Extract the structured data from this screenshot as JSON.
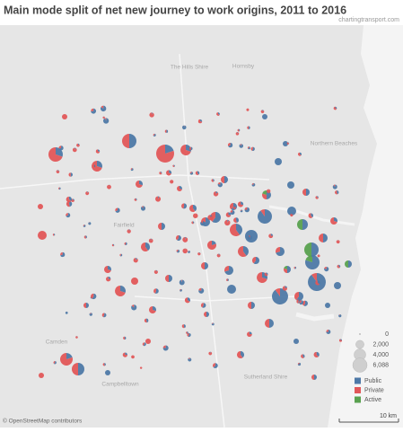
{
  "header": {
    "title": "Main mode split of net new journey to work origins, 2011 to 2016",
    "source": "chartingtransport.com"
  },
  "map": {
    "place_labels": [
      "The Hills Shire",
      "Hornsby",
      "Northern Beaches",
      "Fairfield",
      "Sutherland Shire",
      "Camden",
      "Campbelltown"
    ],
    "attribution": "© OpenStreetMap contributors",
    "scale_bar": "10 km"
  },
  "legend": {
    "sizes": [
      0,
      {
        "value": 2000,
        "label": "2,000"
      },
      {
        "value": 4000,
        "label": "4,000"
      },
      {
        "value": 6088,
        "label": "6,088"
      }
    ],
    "modes": [
      {
        "name": "Public",
        "color": "#4e79a7"
      },
      {
        "name": "Private",
        "color": "#e15759"
      },
      {
        "name": "Active",
        "color": "#59a14f"
      }
    ]
  }
}
